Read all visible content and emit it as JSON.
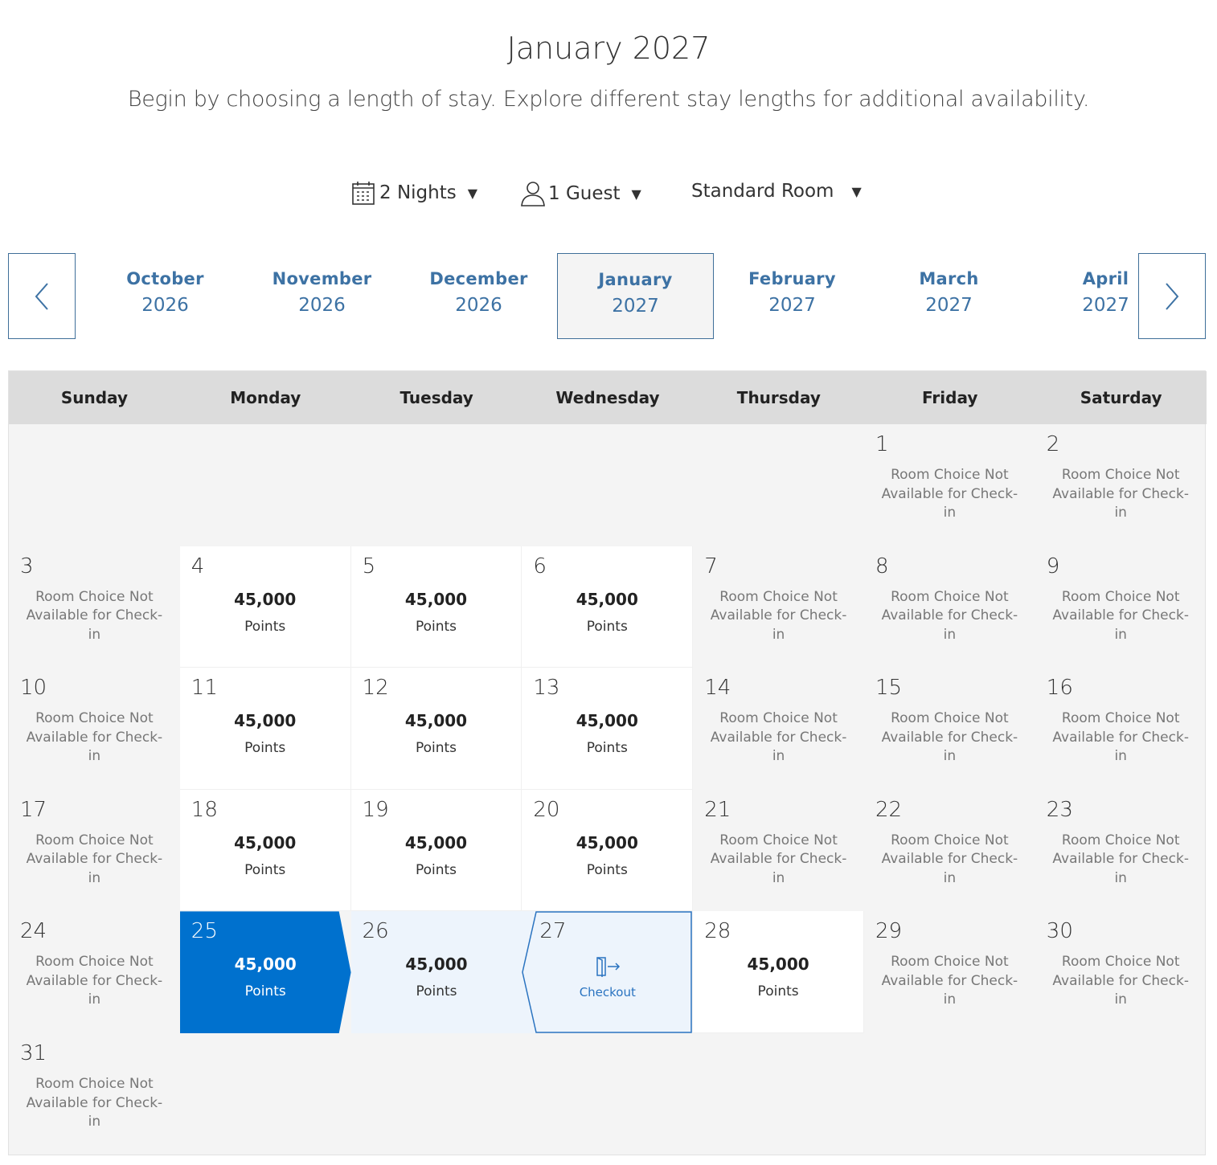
{
  "header": {
    "title": "January 2027",
    "subtitle": "Begin by choosing a length of stay. Explore different stay lengths for additional availability."
  },
  "filters": {
    "nights": "2 Nights",
    "guests": "1 Guest",
    "room": "Standard Room"
  },
  "months": [
    {
      "month": "October",
      "year": "2026"
    },
    {
      "month": "November",
      "year": "2026"
    },
    {
      "month": "December",
      "year": "2026"
    },
    {
      "month": "January",
      "year": "2027",
      "selected": true
    },
    {
      "month": "February",
      "year": "2027"
    },
    {
      "month": "March",
      "year": "2027"
    },
    {
      "month": "April",
      "year": "2027"
    }
  ],
  "weekdays": [
    "Sunday",
    "Monday",
    "Tuesday",
    "Wednesday",
    "Thursday",
    "Friday",
    "Saturday"
  ],
  "labels": {
    "na": "Room Choice Not Available for Check-in",
    "points_unit": "Points",
    "checkout": "Checkout"
  },
  "colors": {
    "accent": "#0071ce",
    "link": "#3d72a4",
    "range": "#edf4fc"
  },
  "first_weekday": 5,
  "days": [
    {
      "d": "1",
      "s": "na"
    },
    {
      "d": "2",
      "s": "na"
    },
    {
      "d": "3",
      "s": "na"
    },
    {
      "d": "4",
      "s": "avail",
      "p": "45,000"
    },
    {
      "d": "5",
      "s": "avail",
      "p": "45,000"
    },
    {
      "d": "6",
      "s": "avail",
      "p": "45,000"
    },
    {
      "d": "7",
      "s": "na"
    },
    {
      "d": "8",
      "s": "na"
    },
    {
      "d": "9",
      "s": "na"
    },
    {
      "d": "10",
      "s": "na"
    },
    {
      "d": "11",
      "s": "avail",
      "p": "45,000"
    },
    {
      "d": "12",
      "s": "avail",
      "p": "45,000"
    },
    {
      "d": "13",
      "s": "avail",
      "p": "45,000"
    },
    {
      "d": "14",
      "s": "na"
    },
    {
      "d": "15",
      "s": "na"
    },
    {
      "d": "16",
      "s": "na"
    },
    {
      "d": "17",
      "s": "na"
    },
    {
      "d": "18",
      "s": "avail",
      "p": "45,000"
    },
    {
      "d": "19",
      "s": "avail",
      "p": "45,000"
    },
    {
      "d": "20",
      "s": "avail",
      "p": "45,000"
    },
    {
      "d": "21",
      "s": "na"
    },
    {
      "d": "22",
      "s": "na"
    },
    {
      "d": "23",
      "s": "na"
    },
    {
      "d": "24",
      "s": "na"
    },
    {
      "d": "25",
      "s": "start",
      "p": "45,000"
    },
    {
      "d": "26",
      "s": "range",
      "p": "45,000"
    },
    {
      "d": "27",
      "s": "checkout"
    },
    {
      "d": "28",
      "s": "avail",
      "p": "45,000"
    },
    {
      "d": "29",
      "s": "na"
    },
    {
      "d": "30",
      "s": "na"
    },
    {
      "d": "31",
      "s": "na"
    }
  ]
}
